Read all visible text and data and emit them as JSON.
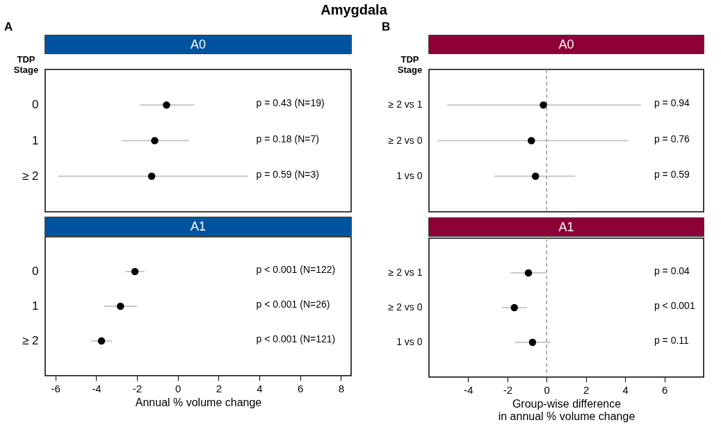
{
  "chart_data": [
    {
      "type": "scatter",
      "orientation": "horizontal",
      "title": "A0",
      "ylabel": "TDP Stage",
      "categories": [
        "0",
        "1",
        "≥ 2"
      ],
      "values": [
        -0.55,
        -1.13,
        -1.28
      ],
      "errors": [
        [
          -1.86,
          0.82
        ],
        [
          -2.75,
          0.55
        ],
        [
          -5.87,
          3.45
        ]
      ],
      "color": "#000000",
      "marker": "circle",
      "xlim": [
        -6.5,
        8.5
      ],
      "xticks": [
        -6,
        -4,
        -2,
        0,
        2,
        4,
        6,
        8
      ],
      "tick_labels": "y",
      "grid": false,
      "annotations": [
        "Amygdala",
        "A",
        "p = 0.43 (N=19)",
        "p = 0.18 (N=7)",
        "p = 0.59 (N=3)"
      ]
    },
    {
      "type": "scatter",
      "orientation": "horizontal",
      "title": "A0",
      "ylabel": "TDP Stage",
      "categories": [
        "≥ 2 vs 1",
        "≥ 2 vs 0",
        "1 vs 0"
      ],
      "values": [
        -0.17,
        -0.78,
        -0.57
      ],
      "errors": [
        [
          -5.07,
          4.81
        ],
        [
          -5.56,
          4.15
        ],
        [
          -2.67,
          1.45
        ]
      ],
      "color": "#000000",
      "marker": "circle",
      "xlim": [
        -6,
        8
      ],
      "xticks": [
        -4,
        -2,
        0,
        2,
        4,
        6
      ],
      "tick_labels": "y",
      "grid": false,
      "ref_lines": [
        {
          "axis": "x",
          "value": 0,
          "color": "#969696",
          "line_style": "dashed"
        }
      ],
      "annotations": [
        "B",
        "p = 0.94",
        "p = 0.76",
        "p = 0.59"
      ]
    },
    {
      "type": "scatter",
      "orientation": "horizontal",
      "title": "A1",
      "xlabel": "Annual % volume change",
      "categories": [
        "0",
        "1",
        "≥ 2"
      ],
      "values": [
        -2.1,
        -2.81,
        -3.74
      ],
      "errors": [
        [
          -2.56,
          -1.63
        ],
        [
          -3.61,
          -1.99
        ],
        [
          -4.25,
          -3.22
        ]
      ],
      "color": "#000000",
      "marker": "circle",
      "xlim": [
        -6.5,
        8.5
      ],
      "xticks": [
        -6,
        -4,
        -2,
        0,
        2,
        4,
        6,
        8
      ],
      "grid": false,
      "annotations": [
        "p < 0.001 (N=122)",
        "p < 0.001 (N=26)",
        "p < 0.001 (N=121)"
      ]
    },
    {
      "type": "scatter",
      "orientation": "horizontal",
      "title": "A1",
      "xlabel": "Group-wise difference\nin annual % volume change",
      "categories": [
        "≥ 2 vs 1",
        "≥ 2 vs 0",
        "1 vs 0"
      ],
      "values": [
        -0.93,
        -1.65,
        -0.72
      ],
      "errors": [
        [
          -1.84,
          -0.05
        ],
        [
          -2.29,
          -0.99
        ],
        [
          -1.61,
          0.2
        ]
      ],
      "color": "#000000",
      "marker": "circle",
      "xlim": [
        -6,
        8
      ],
      "xticks": [
        -4,
        -2,
        0,
        2,
        4,
        6
      ],
      "grid": false,
      "ref_lines": [
        {
          "axis": "x",
          "value": 0,
          "color": "#969696",
          "line_style": "dashed"
        }
      ],
      "annotations": [
        "p = 0.04",
        "p < 0.001",
        "p = 0.11"
      ]
    }
  ]
}
